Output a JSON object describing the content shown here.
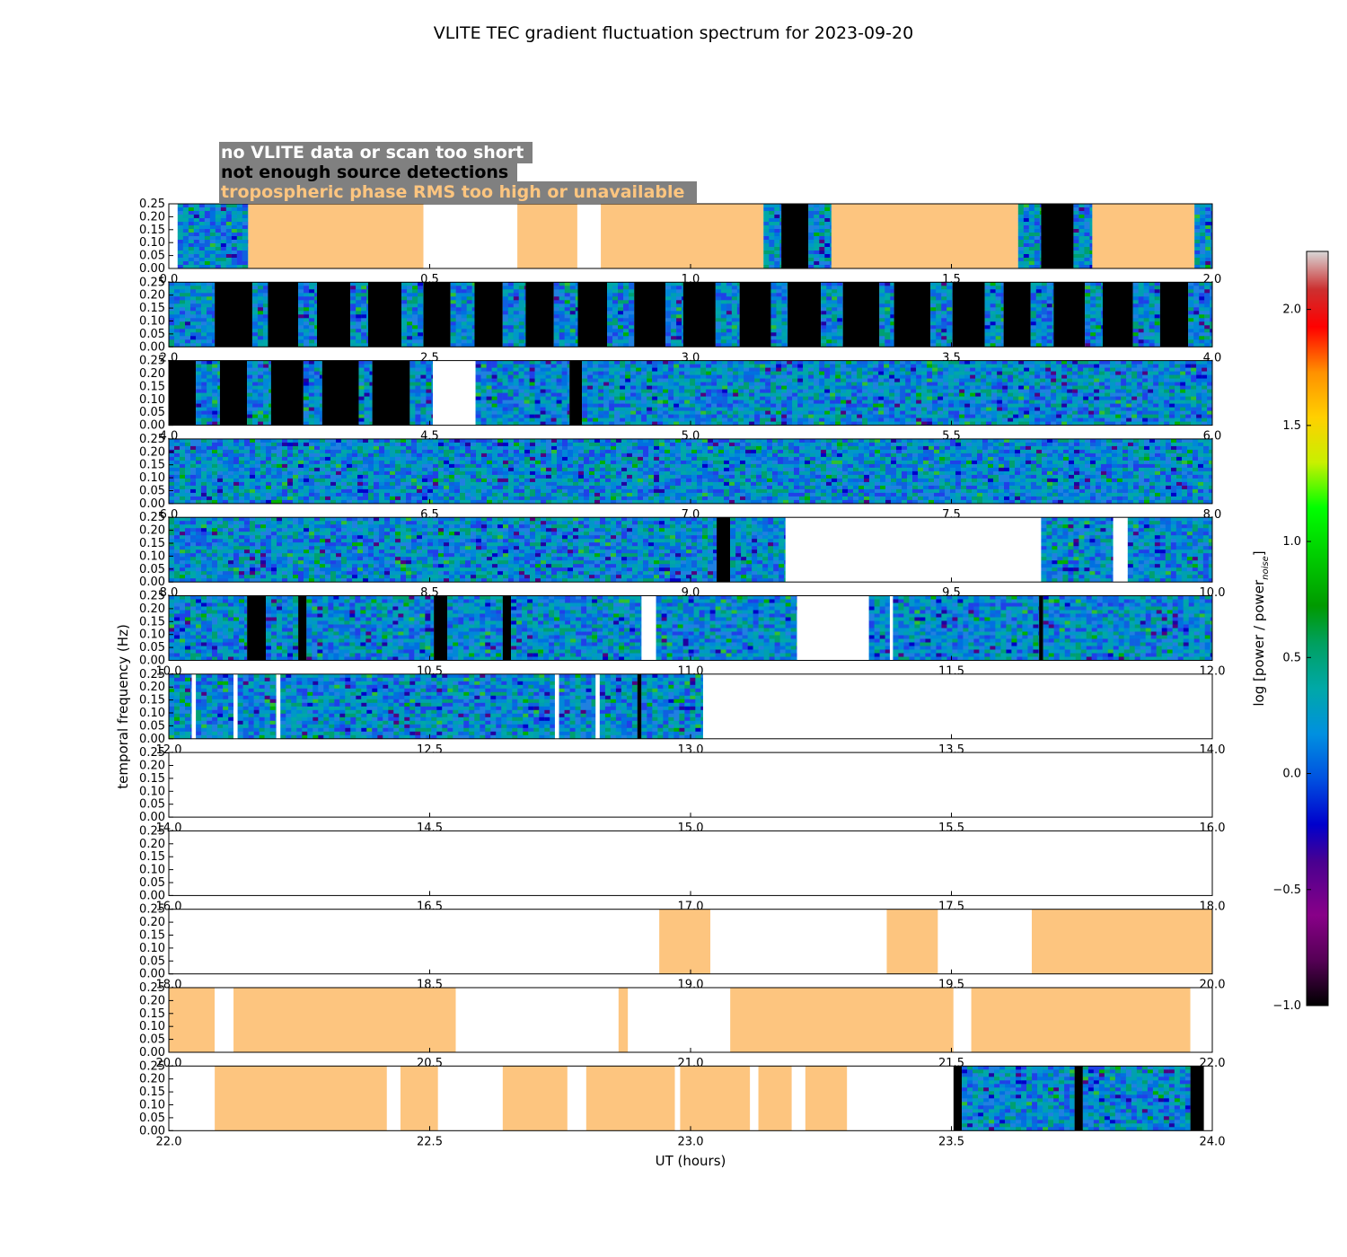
{
  "chart_data": {
    "type": "heatmap",
    "title": "VLITE TEC gradient fluctuation spectrum for 2023-09-20",
    "xlabel": "UT (hours)",
    "ylabel": "temporal frequency (Hz)",
    "colorbar_label": "log [power / power",
    "colorbar_label_sub": "noise",
    "colorbar_label_end": "]",
    "colorbar_range": [
      -1.0,
      2.25
    ],
    "colorbar_ticks": [
      "2.0",
      "1.5",
      "1.0",
      "0.5",
      "0.0",
      "−0.5",
      "−1.0"
    ],
    "colorbar_tick_values": [
      2.0,
      1.5,
      1.0,
      0.5,
      0.0,
      -0.5,
      -1.0
    ],
    "y_ticks": [
      "0.25",
      "0.20",
      "0.15",
      "0.10",
      "0.05",
      "0.00"
    ],
    "y_tick_values": [
      0.25,
      0.2,
      0.15,
      0.1,
      0.05,
      0.0
    ],
    "ylim": [
      0,
      0.25
    ],
    "legend": [
      {
        "label": "no VLITE data or scan too short",
        "text_color": "#ffffff"
      },
      {
        "label": "not enough source detections",
        "text_color": "#000000"
      },
      {
        "label": "tropospheric phase RMS too high or unavailable",
        "text_color": "#fdc57f"
      }
    ],
    "category_colors": {
      "orange": "#fdc57f",
      "black": "#000000",
      "white": "#ffffff",
      "legend_bg": "#808080"
    },
    "panels": [
      {
        "xlim": [
          0,
          2
        ],
        "x_ticks": [
          "0.0",
          "0.5",
          "1.0",
          "1.5",
          "2.0"
        ],
        "segments": [
          {
            "s": 0.0,
            "e": 0.017,
            "k": "w"
          },
          {
            "s": 0.017,
            "e": 0.152,
            "k": "d"
          },
          {
            "s": 0.152,
            "e": 0.488,
            "k": "o"
          },
          {
            "s": 0.488,
            "e": 0.668,
            "k": "w"
          },
          {
            "s": 0.668,
            "e": 0.783,
            "k": "o"
          },
          {
            "s": 0.783,
            "e": 0.828,
            "k": "w"
          },
          {
            "s": 0.828,
            "e": 1.14,
            "k": "o"
          },
          {
            "s": 1.14,
            "e": 1.174,
            "k": "d"
          },
          {
            "s": 1.174,
            "e": 1.226,
            "k": "b"
          },
          {
            "s": 1.226,
            "e": 1.27,
            "k": "d"
          },
          {
            "s": 1.27,
            "e": 1.628,
            "k": "o"
          },
          {
            "s": 1.628,
            "e": 1.672,
            "k": "d"
          },
          {
            "s": 1.672,
            "e": 1.734,
            "k": "b"
          },
          {
            "s": 1.734,
            "e": 1.77,
            "k": "d"
          },
          {
            "s": 1.77,
            "e": 1.966,
            "k": "o"
          },
          {
            "s": 1.966,
            "e": 2.0,
            "k": "d"
          }
        ]
      },
      {
        "xlim": [
          2,
          4
        ],
        "x_ticks": [
          "2.0",
          "2.5",
          "3.0",
          "3.5",
          "4.0"
        ],
        "segments": [
          {
            "s": 2.0,
            "e": 2.088,
            "k": "d"
          },
          {
            "s": 2.088,
            "e": 2.16,
            "k": "b"
          },
          {
            "s": 2.16,
            "e": 2.19,
            "k": "d"
          },
          {
            "s": 2.19,
            "e": 2.248,
            "k": "b"
          },
          {
            "s": 2.248,
            "e": 2.284,
            "k": "d"
          },
          {
            "s": 2.284,
            "e": 2.348,
            "k": "b"
          },
          {
            "s": 2.348,
            "e": 2.382,
            "k": "d"
          },
          {
            "s": 2.382,
            "e": 2.446,
            "k": "b"
          },
          {
            "s": 2.446,
            "e": 2.488,
            "k": "d"
          },
          {
            "s": 2.488,
            "e": 2.54,
            "k": "b"
          },
          {
            "s": 2.54,
            "e": 2.586,
            "k": "d"
          },
          {
            "s": 2.586,
            "e": 2.64,
            "k": "b"
          },
          {
            "s": 2.64,
            "e": 2.684,
            "k": "d"
          },
          {
            "s": 2.684,
            "e": 2.738,
            "k": "b"
          },
          {
            "s": 2.738,
            "e": 2.784,
            "k": "d"
          },
          {
            "s": 2.784,
            "e": 2.84,
            "k": "b"
          },
          {
            "s": 2.84,
            "e": 2.892,
            "k": "d"
          },
          {
            "s": 2.892,
            "e": 2.952,
            "k": "b"
          },
          {
            "s": 2.952,
            "e": 2.986,
            "k": "d"
          },
          {
            "s": 2.986,
            "e": 3.048,
            "k": "b"
          },
          {
            "s": 3.048,
            "e": 3.094,
            "k": "d"
          },
          {
            "s": 3.094,
            "e": 3.154,
            "k": "b"
          },
          {
            "s": 3.154,
            "e": 3.186,
            "k": "d"
          },
          {
            "s": 3.186,
            "e": 3.25,
            "k": "b"
          },
          {
            "s": 3.25,
            "e": 3.292,
            "k": "d"
          },
          {
            "s": 3.292,
            "e": 3.362,
            "k": "b"
          },
          {
            "s": 3.362,
            "e": 3.39,
            "k": "d"
          },
          {
            "s": 3.39,
            "e": 3.46,
            "k": "b"
          },
          {
            "s": 3.46,
            "e": 3.502,
            "k": "d"
          },
          {
            "s": 3.502,
            "e": 3.564,
            "k": "b"
          },
          {
            "s": 3.564,
            "e": 3.6,
            "k": "d"
          },
          {
            "s": 3.6,
            "e": 3.652,
            "k": "b"
          },
          {
            "s": 3.652,
            "e": 3.696,
            "k": "d"
          },
          {
            "s": 3.696,
            "e": 3.756,
            "k": "b"
          },
          {
            "s": 3.756,
            "e": 3.79,
            "k": "d"
          },
          {
            "s": 3.79,
            "e": 3.848,
            "k": "b"
          },
          {
            "s": 3.848,
            "e": 3.9,
            "k": "d"
          },
          {
            "s": 3.9,
            "e": 3.954,
            "k": "b"
          },
          {
            "s": 3.954,
            "e": 4.0,
            "k": "d"
          }
        ]
      },
      {
        "xlim": [
          4,
          6
        ],
        "x_ticks": [
          "4.0",
          "4.5",
          "5.0",
          "5.5",
          "6.0"
        ],
        "segments": [
          {
            "s": 4.0,
            "e": 4.052,
            "k": "b"
          },
          {
            "s": 4.052,
            "e": 4.098,
            "k": "d"
          },
          {
            "s": 4.098,
            "e": 4.15,
            "k": "b"
          },
          {
            "s": 4.15,
            "e": 4.196,
            "k": "d"
          },
          {
            "s": 4.196,
            "e": 4.258,
            "k": "b"
          },
          {
            "s": 4.258,
            "e": 4.294,
            "k": "d"
          },
          {
            "s": 4.294,
            "e": 4.364,
            "k": "b"
          },
          {
            "s": 4.364,
            "e": 4.39,
            "k": "d"
          },
          {
            "s": 4.39,
            "e": 4.462,
            "k": "b"
          },
          {
            "s": 4.462,
            "e": 4.506,
            "k": "d"
          },
          {
            "s": 4.506,
            "e": 4.588,
            "k": "w"
          },
          {
            "s": 4.588,
            "e": 4.768,
            "k": "d"
          },
          {
            "s": 4.768,
            "e": 4.792,
            "k": "b"
          },
          {
            "s": 4.792,
            "e": 6.0,
            "k": "d"
          }
        ]
      },
      {
        "xlim": [
          6,
          8
        ],
        "x_ticks": [
          "6.0",
          "6.5",
          "7.0",
          "7.5",
          "8.0"
        ],
        "segments": [
          {
            "s": 6.0,
            "e": 8.0,
            "k": "d"
          }
        ]
      },
      {
        "xlim": [
          8,
          10
        ],
        "x_ticks": [
          "8.0",
          "8.5",
          "9.0",
          "9.5",
          "10.0"
        ],
        "segments": [
          {
            "s": 8.0,
            "e": 9.05,
            "k": "d"
          },
          {
            "s": 9.05,
            "e": 9.076,
            "k": "b"
          },
          {
            "s": 9.076,
            "e": 9.182,
            "k": "d"
          },
          {
            "s": 9.182,
            "e": 9.672,
            "k": "w"
          },
          {
            "s": 9.672,
            "e": 9.81,
            "k": "d"
          },
          {
            "s": 9.81,
            "e": 9.838,
            "k": "w"
          },
          {
            "s": 9.838,
            "e": 10.0,
            "k": "d"
          }
        ]
      },
      {
        "xlim": [
          10,
          12
        ],
        "x_ticks": [
          "10.0",
          "10.5",
          "11.0",
          "11.5",
          "12.0"
        ],
        "segments": [
          {
            "s": 10.0,
            "e": 10.15,
            "k": "d"
          },
          {
            "s": 10.15,
            "e": 10.186,
            "k": "b"
          },
          {
            "s": 10.186,
            "e": 10.248,
            "k": "d"
          },
          {
            "s": 10.248,
            "e": 10.264,
            "k": "b"
          },
          {
            "s": 10.264,
            "e": 10.508,
            "k": "d"
          },
          {
            "s": 10.508,
            "e": 10.534,
            "k": "b"
          },
          {
            "s": 10.534,
            "e": 10.64,
            "k": "d"
          },
          {
            "s": 10.64,
            "e": 10.656,
            "k": "b"
          },
          {
            "s": 10.656,
            "e": 10.906,
            "k": "d"
          },
          {
            "s": 10.906,
            "e": 10.934,
            "k": "w"
          },
          {
            "s": 10.934,
            "e": 11.204,
            "k": "d"
          },
          {
            "s": 11.204,
            "e": 11.342,
            "k": "w"
          },
          {
            "s": 11.342,
            "e": 11.382,
            "k": "d"
          },
          {
            "s": 11.382,
            "e": 11.388,
            "k": "w"
          },
          {
            "s": 11.388,
            "e": 11.668,
            "k": "d"
          },
          {
            "s": 11.668,
            "e": 11.676,
            "k": "b"
          },
          {
            "s": 11.676,
            "e": 12.0,
            "k": "d"
          }
        ]
      },
      {
        "xlim": [
          12,
          14
        ],
        "x_ticks": [
          "12.0",
          "12.5",
          "13.0",
          "13.5",
          "14.0"
        ],
        "segments": [
          {
            "s": 12.0,
            "e": 12.044,
            "k": "d"
          },
          {
            "s": 12.044,
            "e": 12.052,
            "k": "w"
          },
          {
            "s": 12.052,
            "e": 12.124,
            "k": "d"
          },
          {
            "s": 12.124,
            "e": 12.132,
            "k": "w"
          },
          {
            "s": 12.132,
            "e": 12.206,
            "k": "d"
          },
          {
            "s": 12.206,
            "e": 12.214,
            "k": "w"
          },
          {
            "s": 12.214,
            "e": 12.74,
            "k": "d"
          },
          {
            "s": 12.74,
            "e": 12.748,
            "k": "w"
          },
          {
            "s": 12.748,
            "e": 12.818,
            "k": "d"
          },
          {
            "s": 12.818,
            "e": 12.826,
            "k": "w"
          },
          {
            "s": 12.826,
            "e": 12.898,
            "k": "d"
          },
          {
            "s": 12.898,
            "e": 12.906,
            "k": "b"
          },
          {
            "s": 12.906,
            "e": 13.024,
            "k": "d"
          },
          {
            "s": 13.024,
            "e": 14.0,
            "k": "w"
          }
        ]
      },
      {
        "xlim": [
          14,
          16
        ],
        "x_ticks": [
          "14.0",
          "14.5",
          "15.0",
          "15.5",
          "16.0"
        ],
        "segments": [
          {
            "s": 14.0,
            "e": 16.0,
            "k": "w"
          }
        ]
      },
      {
        "xlim": [
          16,
          18
        ],
        "x_ticks": [
          "16.0",
          "16.5",
          "17.0",
          "17.5",
          "18.0"
        ],
        "segments": [
          {
            "s": 16.0,
            "e": 18.0,
            "k": "w"
          }
        ]
      },
      {
        "xlim": [
          18,
          20
        ],
        "x_ticks": [
          "18.0",
          "18.5",
          "19.0",
          "19.5",
          "20.0"
        ],
        "segments": [
          {
            "s": 18.0,
            "e": 18.94,
            "k": "w"
          },
          {
            "s": 18.94,
            "e": 19.038,
            "k": "o"
          },
          {
            "s": 19.038,
            "e": 19.376,
            "k": "w"
          },
          {
            "s": 19.376,
            "e": 19.474,
            "k": "o"
          },
          {
            "s": 19.474,
            "e": 19.654,
            "k": "w"
          },
          {
            "s": 19.654,
            "e": 20.0,
            "k": "o"
          }
        ]
      },
      {
        "xlim": [
          20,
          22
        ],
        "x_ticks": [
          "20.0",
          "20.5",
          "21.0",
          "21.5",
          "22.0"
        ],
        "segments": [
          {
            "s": 20.0,
            "e": 20.088,
            "k": "o"
          },
          {
            "s": 20.088,
            "e": 20.124,
            "k": "w"
          },
          {
            "s": 20.124,
            "e": 20.55,
            "k": "o"
          },
          {
            "s": 20.55,
            "e": 20.862,
            "k": "w"
          },
          {
            "s": 20.862,
            "e": 20.88,
            "k": "o"
          },
          {
            "s": 20.88,
            "e": 21.076,
            "k": "w"
          },
          {
            "s": 21.076,
            "e": 21.504,
            "k": "o"
          },
          {
            "s": 21.504,
            "e": 21.538,
            "k": "w"
          },
          {
            "s": 21.538,
            "e": 21.958,
            "k": "o"
          },
          {
            "s": 21.958,
            "e": 22.0,
            "k": "w"
          }
        ]
      },
      {
        "xlim": [
          22,
          24
        ],
        "x_ticks": [
          "22.0",
          "22.5",
          "23.0",
          "23.5",
          "24.0"
        ],
        "segments": [
          {
            "s": 22.0,
            "e": 22.088,
            "k": "w"
          },
          {
            "s": 22.088,
            "e": 22.418,
            "k": "o"
          },
          {
            "s": 22.418,
            "e": 22.444,
            "k": "w"
          },
          {
            "s": 22.444,
            "e": 22.516,
            "k": "o"
          },
          {
            "s": 22.516,
            "e": 22.64,
            "k": "w"
          },
          {
            "s": 22.64,
            "e": 22.764,
            "k": "o"
          },
          {
            "s": 22.764,
            "e": 22.8,
            "k": "w"
          },
          {
            "s": 22.8,
            "e": 22.97,
            "k": "o"
          },
          {
            "s": 22.97,
            "e": 22.98,
            "k": "w"
          },
          {
            "s": 22.98,
            "e": 23.114,
            "k": "o"
          },
          {
            "s": 23.114,
            "e": 23.13,
            "k": "w"
          },
          {
            "s": 23.13,
            "e": 23.194,
            "k": "o"
          },
          {
            "s": 23.194,
            "e": 23.22,
            "k": "w"
          },
          {
            "s": 23.22,
            "e": 23.3,
            "k": "o"
          },
          {
            "s": 23.3,
            "e": 23.504,
            "k": "w"
          },
          {
            "s": 23.504,
            "e": 23.52,
            "k": "b"
          },
          {
            "s": 23.52,
            "e": 23.736,
            "k": "d"
          },
          {
            "s": 23.736,
            "e": 23.752,
            "k": "b"
          },
          {
            "s": 23.752,
            "e": 23.958,
            "k": "d"
          },
          {
            "s": 23.958,
            "e": 23.984,
            "k": "b"
          },
          {
            "s": 23.984,
            "e": 24.0,
            "k": "w"
          }
        ]
      }
    ]
  }
}
